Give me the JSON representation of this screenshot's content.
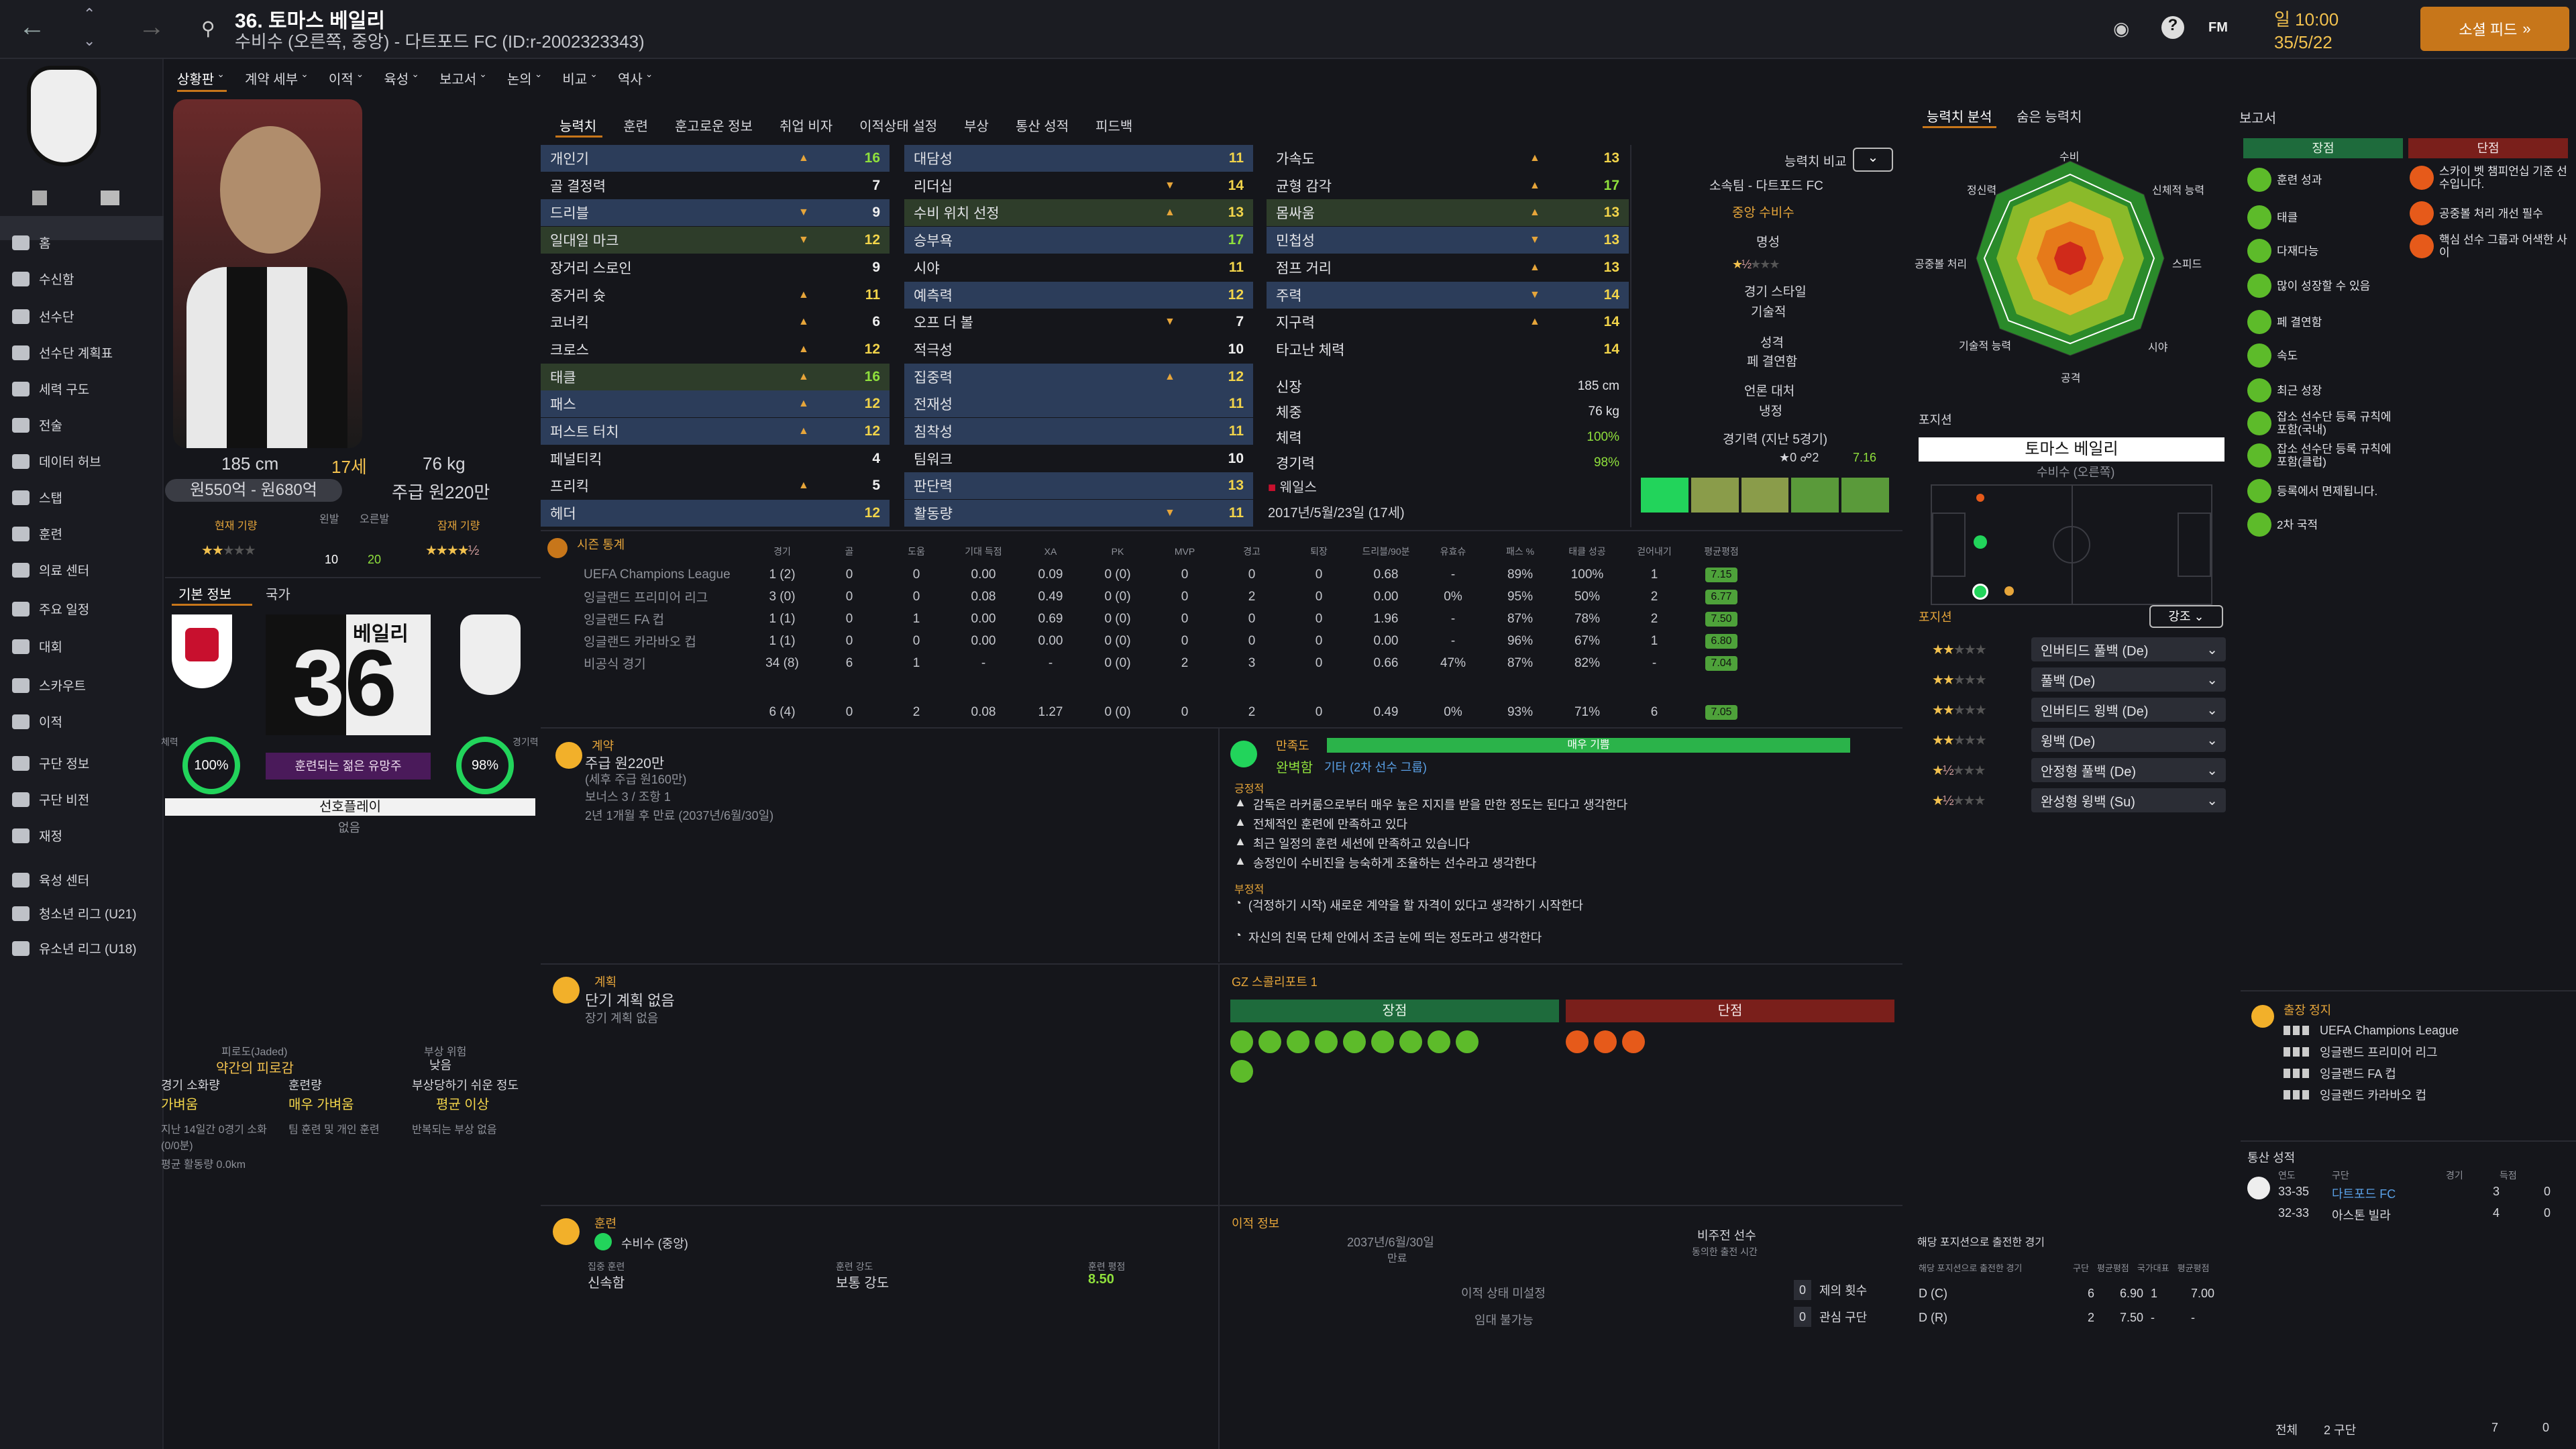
{
  "header": {
    "number_name": "36. 토마스 베일리",
    "subtitle": "수비수 (오른쪽, 중앙) - 다트포드 FC (ID:r-2002323343)",
    "date_line1": "일 10:00",
    "date_line2": "35/5/22",
    "continue_label": "소셜 피드",
    "fm_label": "FM"
  },
  "sidebar": {
    "items": [
      "홈",
      "수신함",
      "선수단",
      "선수단 계획표",
      "세력 구도",
      "전술",
      "데이터 허브",
      "스탭",
      "훈련",
      "의료 센터",
      "주요 일정",
      "대회",
      "스카우트",
      "이적",
      "구단 정보",
      "구단 비전",
      "재정",
      "육성 센터",
      "청소년 리그 (U21)",
      "유소년 리그 (U18)"
    ]
  },
  "subnav": [
    "상황판",
    "계약 세부",
    "이적",
    "육성",
    "보고서",
    "논의",
    "비교",
    "역사"
  ],
  "profile": {
    "height": "185 cm",
    "age": "17세",
    "weight": "76 kg",
    "value": "원550억 - 원680억",
    "wage": "주급 원220만",
    "current_ability": "현재 기량",
    "potential_ability": "잠재 기량",
    "left_foot": "왼발",
    "right_foot": "오른발",
    "left_val": "10",
    "right_val": "20",
    "basic_tab": "기본 정보",
    "nation_tab": "국가",
    "shirt_name": "베일리",
    "shirt_num": "36",
    "fitness_label": "체력",
    "fitness": "100%",
    "sharpness_label": "경기력",
    "sharpness": "98%",
    "status": "훈련되는 젊은 유망주",
    "playing_time": "선호플레이",
    "playing_time_val": "없음"
  },
  "fatigue": {
    "label": "피로도(Jaded)",
    "value": "약간의 피로감",
    "injury_label": "부상 위험",
    "injury_val": "낮음",
    "load_label": "경기 소화량",
    "load_val": "가벼움",
    "train_label": "훈련량",
    "train_val": "매우 가벼움",
    "prone_label": "부상당하기 쉬운 정도",
    "prone_val": "평균 이상",
    "note1": "지난 14일간 0경기 소화(0/0분)",
    "note2": "팀 훈련 및 개인 훈련",
    "note3": "반복되는 부상 없음",
    "avg_dist": "평균 활동량 0.0km"
  },
  "attr_tabs": [
    "능력치",
    "훈련",
    "훈고로운 정보",
    "취업 비자",
    "이적상태 설정",
    "부상",
    "통산 성적",
    "피드백"
  ],
  "tech": [
    [
      "개인기",
      "16"
    ],
    [
      "골 결정력",
      "7"
    ],
    [
      "드리블",
      "9"
    ],
    [
      "일대일 마크",
      "12"
    ],
    [
      "장거리 스로인",
      "9"
    ],
    [
      "중거리 슛",
      "11"
    ],
    [
      "코너킥",
      "6"
    ],
    [
      "크로스",
      "12"
    ],
    [
      "태클",
      "16"
    ],
    [
      "패스",
      "12"
    ],
    [
      "퍼스트 터치",
      "12"
    ],
    [
      "페널티킥",
      "4"
    ],
    [
      "프리킥",
      "5"
    ],
    [
      "헤더",
      "12"
    ]
  ],
  "mental": [
    [
      "대담성",
      "11"
    ],
    [
      "리더십",
      "14"
    ],
    [
      "수비 위치 선정",
      "13"
    ],
    [
      "승부욕",
      "17"
    ],
    [
      "시야",
      "11"
    ],
    [
      "예측력",
      "12"
    ],
    [
      "오프 더 볼",
      "7"
    ],
    [
      "적극성",
      "10"
    ],
    [
      "집중력",
      "12"
    ],
    [
      "전재성",
      "11"
    ],
    [
      "침착성",
      "11"
    ],
    [
      "팀워크",
      "10"
    ],
    [
      "판단력",
      "13"
    ],
    [
      "활동량",
      "11"
    ]
  ],
  "physical": [
    [
      "가속도",
      "13"
    ],
    [
      "균형 감각",
      "17"
    ],
    [
      "몸싸움",
      "13"
    ],
    [
      "민첩성",
      "13"
    ],
    [
      "점프 거리",
      "13"
    ],
    [
      "주력",
      "14"
    ],
    [
      "지구력",
      "14"
    ],
    [
      "타고난 체력",
      "14"
    ]
  ],
  "phys_info": [
    [
      "신장",
      "185 cm"
    ],
    [
      "체중",
      "76 kg"
    ],
    [
      "체력",
      "100%"
    ],
    [
      "경기력",
      "98%"
    ]
  ],
  "nation_line": "웨일스",
  "dob": "2017년/5월/23일 (17세)",
  "compare": {
    "label": "능력치 비교",
    "club": "소속팀 - 다트포드 FC",
    "role": "중앙 수비수",
    "rep": "명성",
    "style": "경기 스타일",
    "style_val": "기술적",
    "pers": "성격",
    "pers_val": "페 결연함",
    "media": "언론 대처",
    "media_val": "냉정",
    "form_label": "경기력 (지난 5경기)",
    "form_avg": "7.16"
  },
  "stats_header": {
    "title": "시즌 통계",
    "cols": [
      "경기",
      "골",
      "도움",
      "기대 득점",
      "XA",
      "PK",
      "MVP",
      "경고",
      "퇴장",
      "드리블/90분",
      "유효슈",
      "패스 %",
      "태클 성공",
      "걷어내기",
      "평균평점"
    ]
  },
  "stats_rows": [
    [
      "UEFA Champions League",
      "1 (2)",
      "0",
      "0",
      "0.00",
      "0.09",
      "0 (0)",
      "0",
      "0",
      "0",
      "0.68",
      "-",
      "89%",
      "100%",
      "1",
      "7.15"
    ],
    [
      "잉글랜드 프리미어 리그",
      "3 (0)",
      "0",
      "0",
      "0.08",
      "0.49",
      "0 (0)",
      "0",
      "2",
      "0",
      "0.00",
      "0%",
      "95%",
      "50%",
      "2",
      "6.77"
    ],
    [
      "잉글랜드 FA 컵",
      "1 (1)",
      "0",
      "1",
      "0.00",
      "0.69",
      "0 (0)",
      "0",
      "0",
      "0",
      "1.96",
      "-",
      "87%",
      "78%",
      "2",
      "7.50"
    ],
    [
      "잉글랜드 카라바오 컵",
      "1 (1)",
      "0",
      "0",
      "0.00",
      "0.00",
      "0 (0)",
      "0",
      "0",
      "0",
      "0.00",
      "-",
      "96%",
      "67%",
      "1",
      "6.80"
    ],
    [
      "비공식 경기",
      "34 (8)",
      "6",
      "1",
      "-",
      "-",
      "0 (0)",
      "2",
      "3",
      "0",
      "0.66",
      "47%",
      "87%",
      "82%",
      "-",
      "7.04"
    ]
  ],
  "stats_total": [
    "6 (4)",
    "0",
    "2",
    "0.08",
    "1.27",
    "0 (0)",
    "0",
    "2",
    "0",
    "0.49",
    "0%",
    "93%",
    "71%",
    "6",
    "7.05"
  ],
  "contract": {
    "title": "계약",
    "wage": "주급 원220만",
    "wage_note": "(세후 주급 원160만)",
    "bonus": "보너스 3 / 조항 1",
    "expiry": "2년 1개월 후 만료 (2037년/6월/30일)"
  },
  "plan": {
    "title": "계획",
    "line1": "단기 계획 없음",
    "line2": "장기 계획 없음"
  },
  "training": {
    "title": "훈련",
    "role": "수비수 (중앙)",
    "focus_label": "집중 훈련",
    "focus": "신속함",
    "intensity_label": "훈련 강도",
    "intensity": "보통 강도",
    "rating_label": "훈련 평점",
    "rating": "8.50"
  },
  "morale": {
    "label": "만족도",
    "bar": "매우 기쁨",
    "happy": "완벽함",
    "group": "기타 (2차 선수 그룹)",
    "pos_title": "긍정적",
    "pos": [
      "감독은 라커룸으로부터 매우 높은 지지를 받을 만한 정도는 된다고 생각한다",
      "전체적인 훈련에 만족하고 있다",
      "최근 일정의 훈련 세션에 만족하고 있습니다",
      "송정인이 수비진을 능숙하게 조율하는 선수라고 생각한다"
    ],
    "neg_title": "부정적",
    "neg": [
      "(걱정하기 시작) 새로운 계약을 할 자격이 있다고 생각하기 시작한다",
      "자신의 친목 단체 안에서 조금 눈에 띄는 정도라고 생각한다"
    ]
  },
  "scout": {
    "title": "GZ 스콜리포트 1",
    "pros": "장점",
    "cons": "단점"
  },
  "transfer": {
    "title": "이적 정보",
    "date": "2037년/6월/30일",
    "date_label": "만료",
    "status": "비주전 선수",
    "status_label": "동의한 출전 시간",
    "market": "이적 상태 미설정",
    "loan": "임대 불가능",
    "offers": "제의 횟수",
    "offers_val": "0",
    "interest": "관심 구단",
    "interest_val": "0"
  },
  "analysis": {
    "tab1": "능력치 분석",
    "tab2": "숨은 능력치",
    "labels": [
      "수비",
      "신체적 능력",
      "스피드",
      "시야",
      "공격",
      "기술적 능력",
      "공중볼 처리",
      "정신력"
    ]
  },
  "position": {
    "title": "포지션",
    "name": "토마스 베일리",
    "sub": "수비수 (오른쪽)",
    "roles_title": "포지션",
    "filter": "강조",
    "roles": [
      [
        "인버티드 풀백 (De)",
        2
      ],
      [
        "풀백 (De)",
        2
      ],
      [
        "인버티드 윙백 (De)",
        2
      ],
      [
        "윙백 (De)",
        2
      ],
      [
        "안정형 풀백 (De)",
        1.5
      ],
      [
        "완성형 윙백 (Su)",
        1.5
      ]
    ]
  },
  "pos_played": {
    "title": "해당 포지션으로 출전한 경기",
    "cols": [
      "구단",
      "평균평점",
      "국가대표",
      "평균평점"
    ],
    "rows": [
      [
        "D (C)",
        "6",
        "6.90",
        "1",
        "7.00"
      ],
      [
        "D (R)",
        "2",
        "7.50",
        "-",
        "-"
      ]
    ],
    "label": "해당 포지션으로 출전한 경기"
  },
  "report": {
    "title": "보고서",
    "pros": "장점",
    "cons": "단점",
    "pros_list": [
      "훈련 성과",
      "태클",
      "다재다능",
      "많이 성장할 수 있음",
      "페 결연함",
      "속도",
      "최근 성장",
      "잡소 선수단 등록 규칙에 포함(국내)",
      "잡소 선수단 등록 규칙에 포함(클럽)",
      "등록에서 면제됩니다.",
      "2차 국적"
    ],
    "cons_list": [
      "스카이 벳 챔피언십 기준 선수입니다.",
      "공중볼 처리 개선 필수",
      "핵심 선수 그룹과 어색한 사이"
    ]
  },
  "suspension": {
    "title": "출장 정지",
    "items": [
      "UEFA Champions League",
      "잉글랜드 프리미어 리그",
      "잉글랜드 FA 컵",
      "잉글랜드 카라바오 컵"
    ]
  },
  "career": {
    "title": "통산 성적",
    "cols": [
      "연도",
      "구단",
      "경기",
      "득점"
    ],
    "rows": [
      [
        "33-35",
        "다트포드 FC",
        "3",
        "0"
      ],
      [
        "32-33",
        "아스톤 빌라",
        "4",
        "0"
      ]
    ],
    "total_label": "전체",
    "total_clubs": "2 구단",
    "total_apps": "7",
    "total_goals": "0"
  },
  "colors": {
    "accent": "#c7761a",
    "green": "#8fe03c",
    "gold": "#f2c14e",
    "red": "#7a1f1b"
  }
}
